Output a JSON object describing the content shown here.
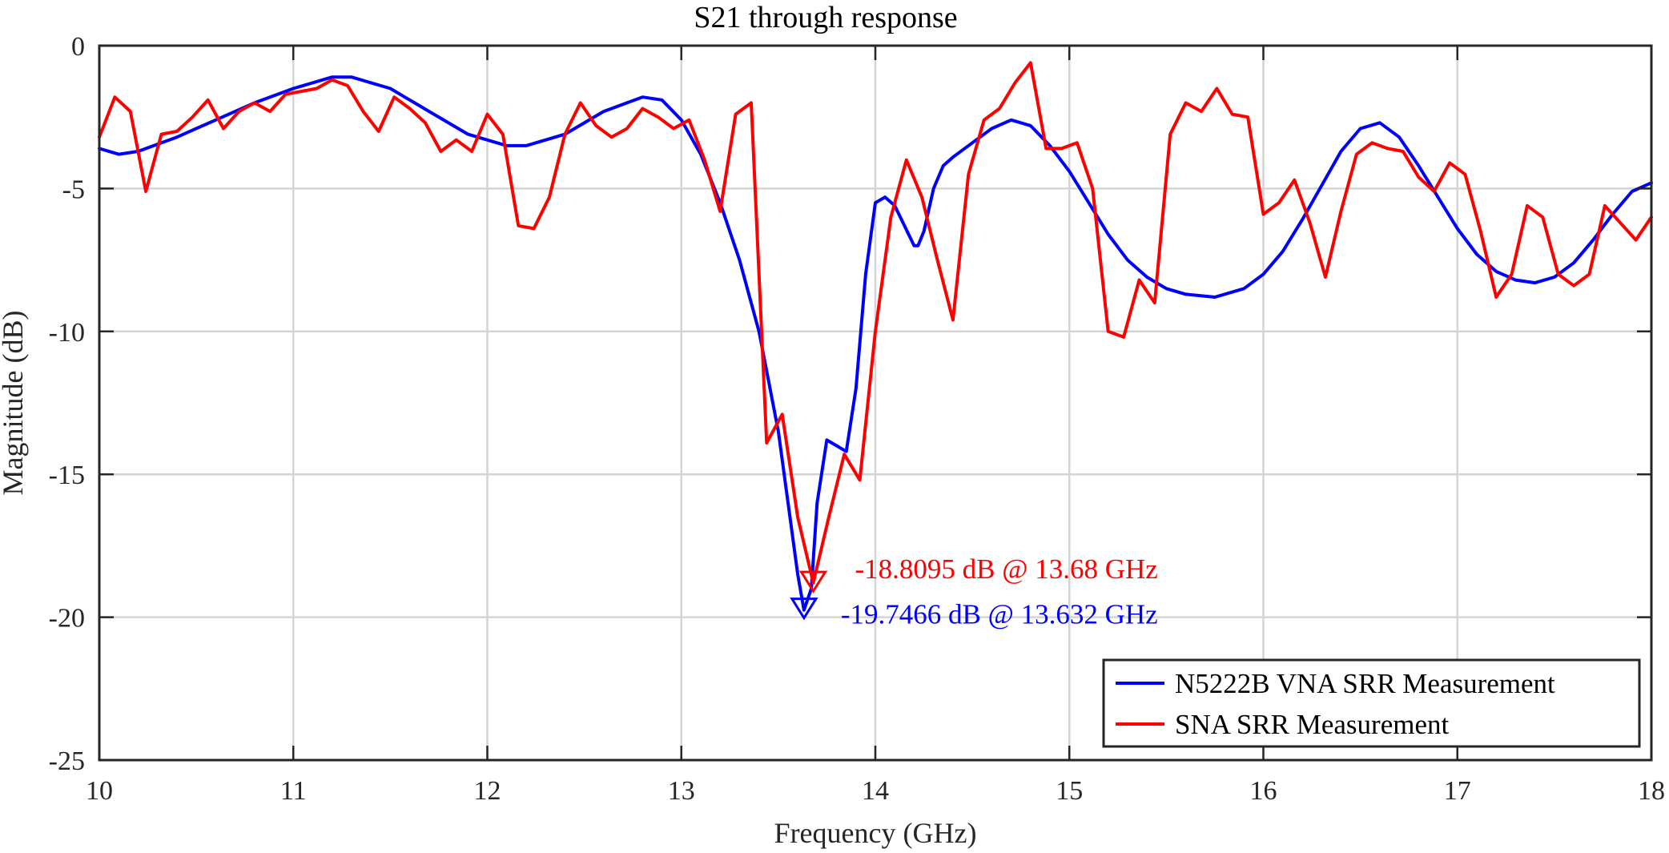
{
  "chart_data": {
    "type": "line",
    "title": "S21 through response",
    "xlabel": "Frequency (GHz)",
    "ylabel": "Magnitude (dB)",
    "xlim": [
      10,
      18
    ],
    "ylim": [
      -25,
      0
    ],
    "xticks": [
      10,
      11,
      12,
      13,
      14,
      15,
      16,
      17,
      18
    ],
    "yticks": [
      0,
      -5,
      -10,
      -15,
      -20,
      -25
    ],
    "xtick_labels": [
      "10",
      "11",
      "12",
      "13",
      "14",
      "15",
      "16",
      "17",
      "18"
    ],
    "ytick_labels": [
      "0",
      "-5",
      "-10",
      "-15",
      "-20",
      "-25"
    ],
    "grid": true,
    "legend_position": "bottom-right",
    "series": [
      {
        "name": "N5222B VNA SRR Measurement",
        "color": "#0000ff",
        "x": [
          10.0,
          10.1,
          10.2,
          10.4,
          10.6,
          10.8,
          11.0,
          11.2,
          11.3,
          11.5,
          11.7,
          11.9,
          12.1,
          12.2,
          12.4,
          12.6,
          12.8,
          12.9,
          13.0,
          13.1,
          13.2,
          13.3,
          13.4,
          13.5,
          13.55,
          13.6,
          13.632,
          13.67,
          13.7,
          13.75,
          13.8,
          13.85,
          13.9,
          13.95,
          14.0,
          14.05,
          14.1,
          14.15,
          14.2,
          14.22,
          14.25,
          14.3,
          14.35,
          14.4,
          14.5,
          14.6,
          14.7,
          14.8,
          14.9,
          15.0,
          15.1,
          15.2,
          15.3,
          15.4,
          15.5,
          15.6,
          15.75,
          15.9,
          16.0,
          16.1,
          16.2,
          16.3,
          16.4,
          16.5,
          16.6,
          16.7,
          16.8,
          16.9,
          17.0,
          17.1,
          17.2,
          17.3,
          17.4,
          17.5,
          17.6,
          17.7,
          17.8,
          17.9,
          18.0
        ],
        "y": [
          -3.6,
          -3.8,
          -3.7,
          -3.2,
          -2.6,
          -2.0,
          -1.5,
          -1.1,
          -1.1,
          -1.5,
          -2.3,
          -3.1,
          -3.5,
          -3.5,
          -3.1,
          -2.3,
          -1.8,
          -1.9,
          -2.6,
          -3.8,
          -5.5,
          -7.5,
          -10.0,
          -13.5,
          -16.0,
          -18.5,
          -19.75,
          -19.0,
          -16.0,
          -13.8,
          -14.0,
          -14.2,
          -12.0,
          -8.0,
          -5.5,
          -5.3,
          -5.6,
          -6.3,
          -7.0,
          -7.0,
          -6.5,
          -5.0,
          -4.2,
          -3.9,
          -3.4,
          -2.9,
          -2.6,
          -2.8,
          -3.5,
          -4.4,
          -5.5,
          -6.6,
          -7.5,
          -8.1,
          -8.5,
          -8.7,
          -8.8,
          -8.5,
          -8.0,
          -7.2,
          -6.1,
          -4.9,
          -3.7,
          -2.9,
          -2.7,
          -3.2,
          -4.2,
          -5.3,
          -6.4,
          -7.3,
          -7.9,
          -8.2,
          -8.3,
          -8.1,
          -7.6,
          -6.8,
          -5.9,
          -5.1,
          -4.8
        ]
      },
      {
        "name": "SNA SRR Measurement",
        "color": "#ff0000",
        "x": [
          10.0,
          10.08,
          10.16,
          10.24,
          10.32,
          10.4,
          10.48,
          10.56,
          10.64,
          10.72,
          10.8,
          10.88,
          10.96,
          11.04,
          11.12,
          11.2,
          11.28,
          11.36,
          11.44,
          11.52,
          11.6,
          11.68,
          11.76,
          11.84,
          11.92,
          12.0,
          12.08,
          12.16,
          12.24,
          12.32,
          12.4,
          12.48,
          12.56,
          12.64,
          12.72,
          12.8,
          12.88,
          12.96,
          13.04,
          13.12,
          13.2,
          13.28,
          13.36,
          13.44,
          13.52,
          13.6,
          13.68,
          13.76,
          13.84,
          13.92,
          14.0,
          14.08,
          14.16,
          14.24,
          14.32,
          14.4,
          14.48,
          14.56,
          14.64,
          14.72,
          14.8,
          14.88,
          14.96,
          15.04,
          15.12,
          15.2,
          15.28,
          15.36,
          15.44,
          15.52,
          15.6,
          15.68,
          15.76,
          15.84,
          15.92,
          16.0,
          16.08,
          16.16,
          16.24,
          16.32,
          16.4,
          16.48,
          16.56,
          16.64,
          16.72,
          16.8,
          16.88,
          16.96,
          17.04,
          17.12,
          17.2,
          17.28,
          17.36,
          17.44,
          17.52,
          17.6,
          17.68,
          17.76,
          17.84,
          17.92,
          18.0
        ],
        "y": [
          -3.2,
          -1.8,
          -2.3,
          -5.1,
          -3.1,
          -3.0,
          -2.5,
          -1.9,
          -2.9,
          -2.3,
          -2.0,
          -2.3,
          -1.7,
          -1.6,
          -1.5,
          -1.2,
          -1.4,
          -2.3,
          -3.0,
          -1.8,
          -2.2,
          -2.7,
          -3.7,
          -3.3,
          -3.7,
          -2.4,
          -3.1,
          -6.3,
          -6.4,
          -5.3,
          -3.1,
          -2.0,
          -2.8,
          -3.2,
          -2.9,
          -2.2,
          -2.5,
          -2.9,
          -2.6,
          -4.0,
          -5.8,
          -2.4,
          -2.0,
          -13.9,
          -12.9,
          -16.5,
          -18.8,
          -16.5,
          -14.3,
          -15.2,
          -10.0,
          -6.0,
          -4.0,
          -5.3,
          -7.5,
          -9.6,
          -4.5,
          -2.6,
          -2.2,
          -1.3,
          -0.6,
          -3.6,
          -3.6,
          -3.4,
          -5.0,
          -10.0,
          -10.2,
          -8.2,
          -9.0,
          -3.1,
          -2.0,
          -2.3,
          -1.5,
          -2.4,
          -2.5,
          -5.9,
          -5.5,
          -4.7,
          -6.2,
          -8.1,
          -5.8,
          -3.8,
          -3.4,
          -3.6,
          -3.7,
          -4.6,
          -5.1,
          -4.1,
          -4.5,
          -6.5,
          -8.8,
          -8.0,
          -5.6,
          -6.0,
          -8.0,
          -8.4,
          -8.0,
          -5.6,
          -6.2,
          -6.8,
          -6.0
        ]
      }
    ],
    "markers": [
      {
        "series": 0,
        "x": 13.632,
        "y": -19.7466,
        "label": "-19.7466 dB @ 13.632 GHz",
        "color": "#0000ff"
      },
      {
        "series": 1,
        "x": 13.68,
        "y": -18.8095,
        "label": "-18.8095 dB @ 13.68 GHz",
        "color": "#ff0000"
      }
    ]
  }
}
